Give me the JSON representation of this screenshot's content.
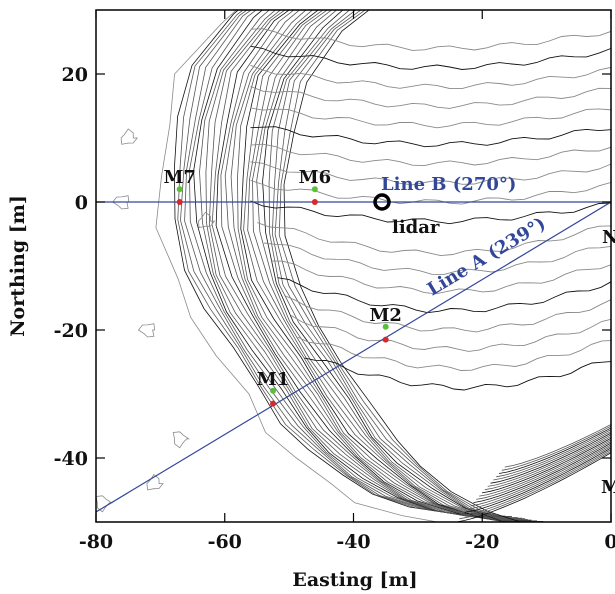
{
  "map": {
    "x_axis": {
      "title": "Easting [m]",
      "ticks": [
        -80,
        -60,
        -40,
        -20,
        0
      ],
      "range": [
        -80,
        0
      ]
    },
    "y_axis": {
      "title": "Northing [m]",
      "ticks": [
        20,
        0,
        -20,
        -40
      ],
      "range": [
        -50,
        30
      ]
    },
    "lines": [
      {
        "id": "line-b",
        "label": "Line B (270°)",
        "color": "#33479a"
      },
      {
        "id": "line-a",
        "label": "Line A (239°)",
        "color": "#33479a"
      }
    ],
    "lidar": {
      "label": "lidar",
      "x": -35,
      "y": 0
    },
    "markers": [
      {
        "label": "M7",
        "green": [
          -67,
          2
        ],
        "red": [
          -67,
          0
        ]
      },
      {
        "label": "M6",
        "green": [
          -46,
          2
        ],
        "red": [
          -46,
          0
        ]
      },
      {
        "label": "M2",
        "green": [
          -35,
          -19.5
        ],
        "red": [
          -35,
          -21.5
        ]
      },
      {
        "label": "M1",
        "green": [
          -52.5,
          -29.5
        ],
        "red": [
          -52.5,
          -31.5
        ]
      }
    ],
    "edge_labels": {
      "right_top": "N",
      "right_bottom": "M"
    },
    "colors": {
      "green_point": "#5bbf3a",
      "red_point": "#d8282a",
      "contour_dark": "#111111",
      "contour_light": "#8a8a8a",
      "line": "#33479a"
    }
  }
}
